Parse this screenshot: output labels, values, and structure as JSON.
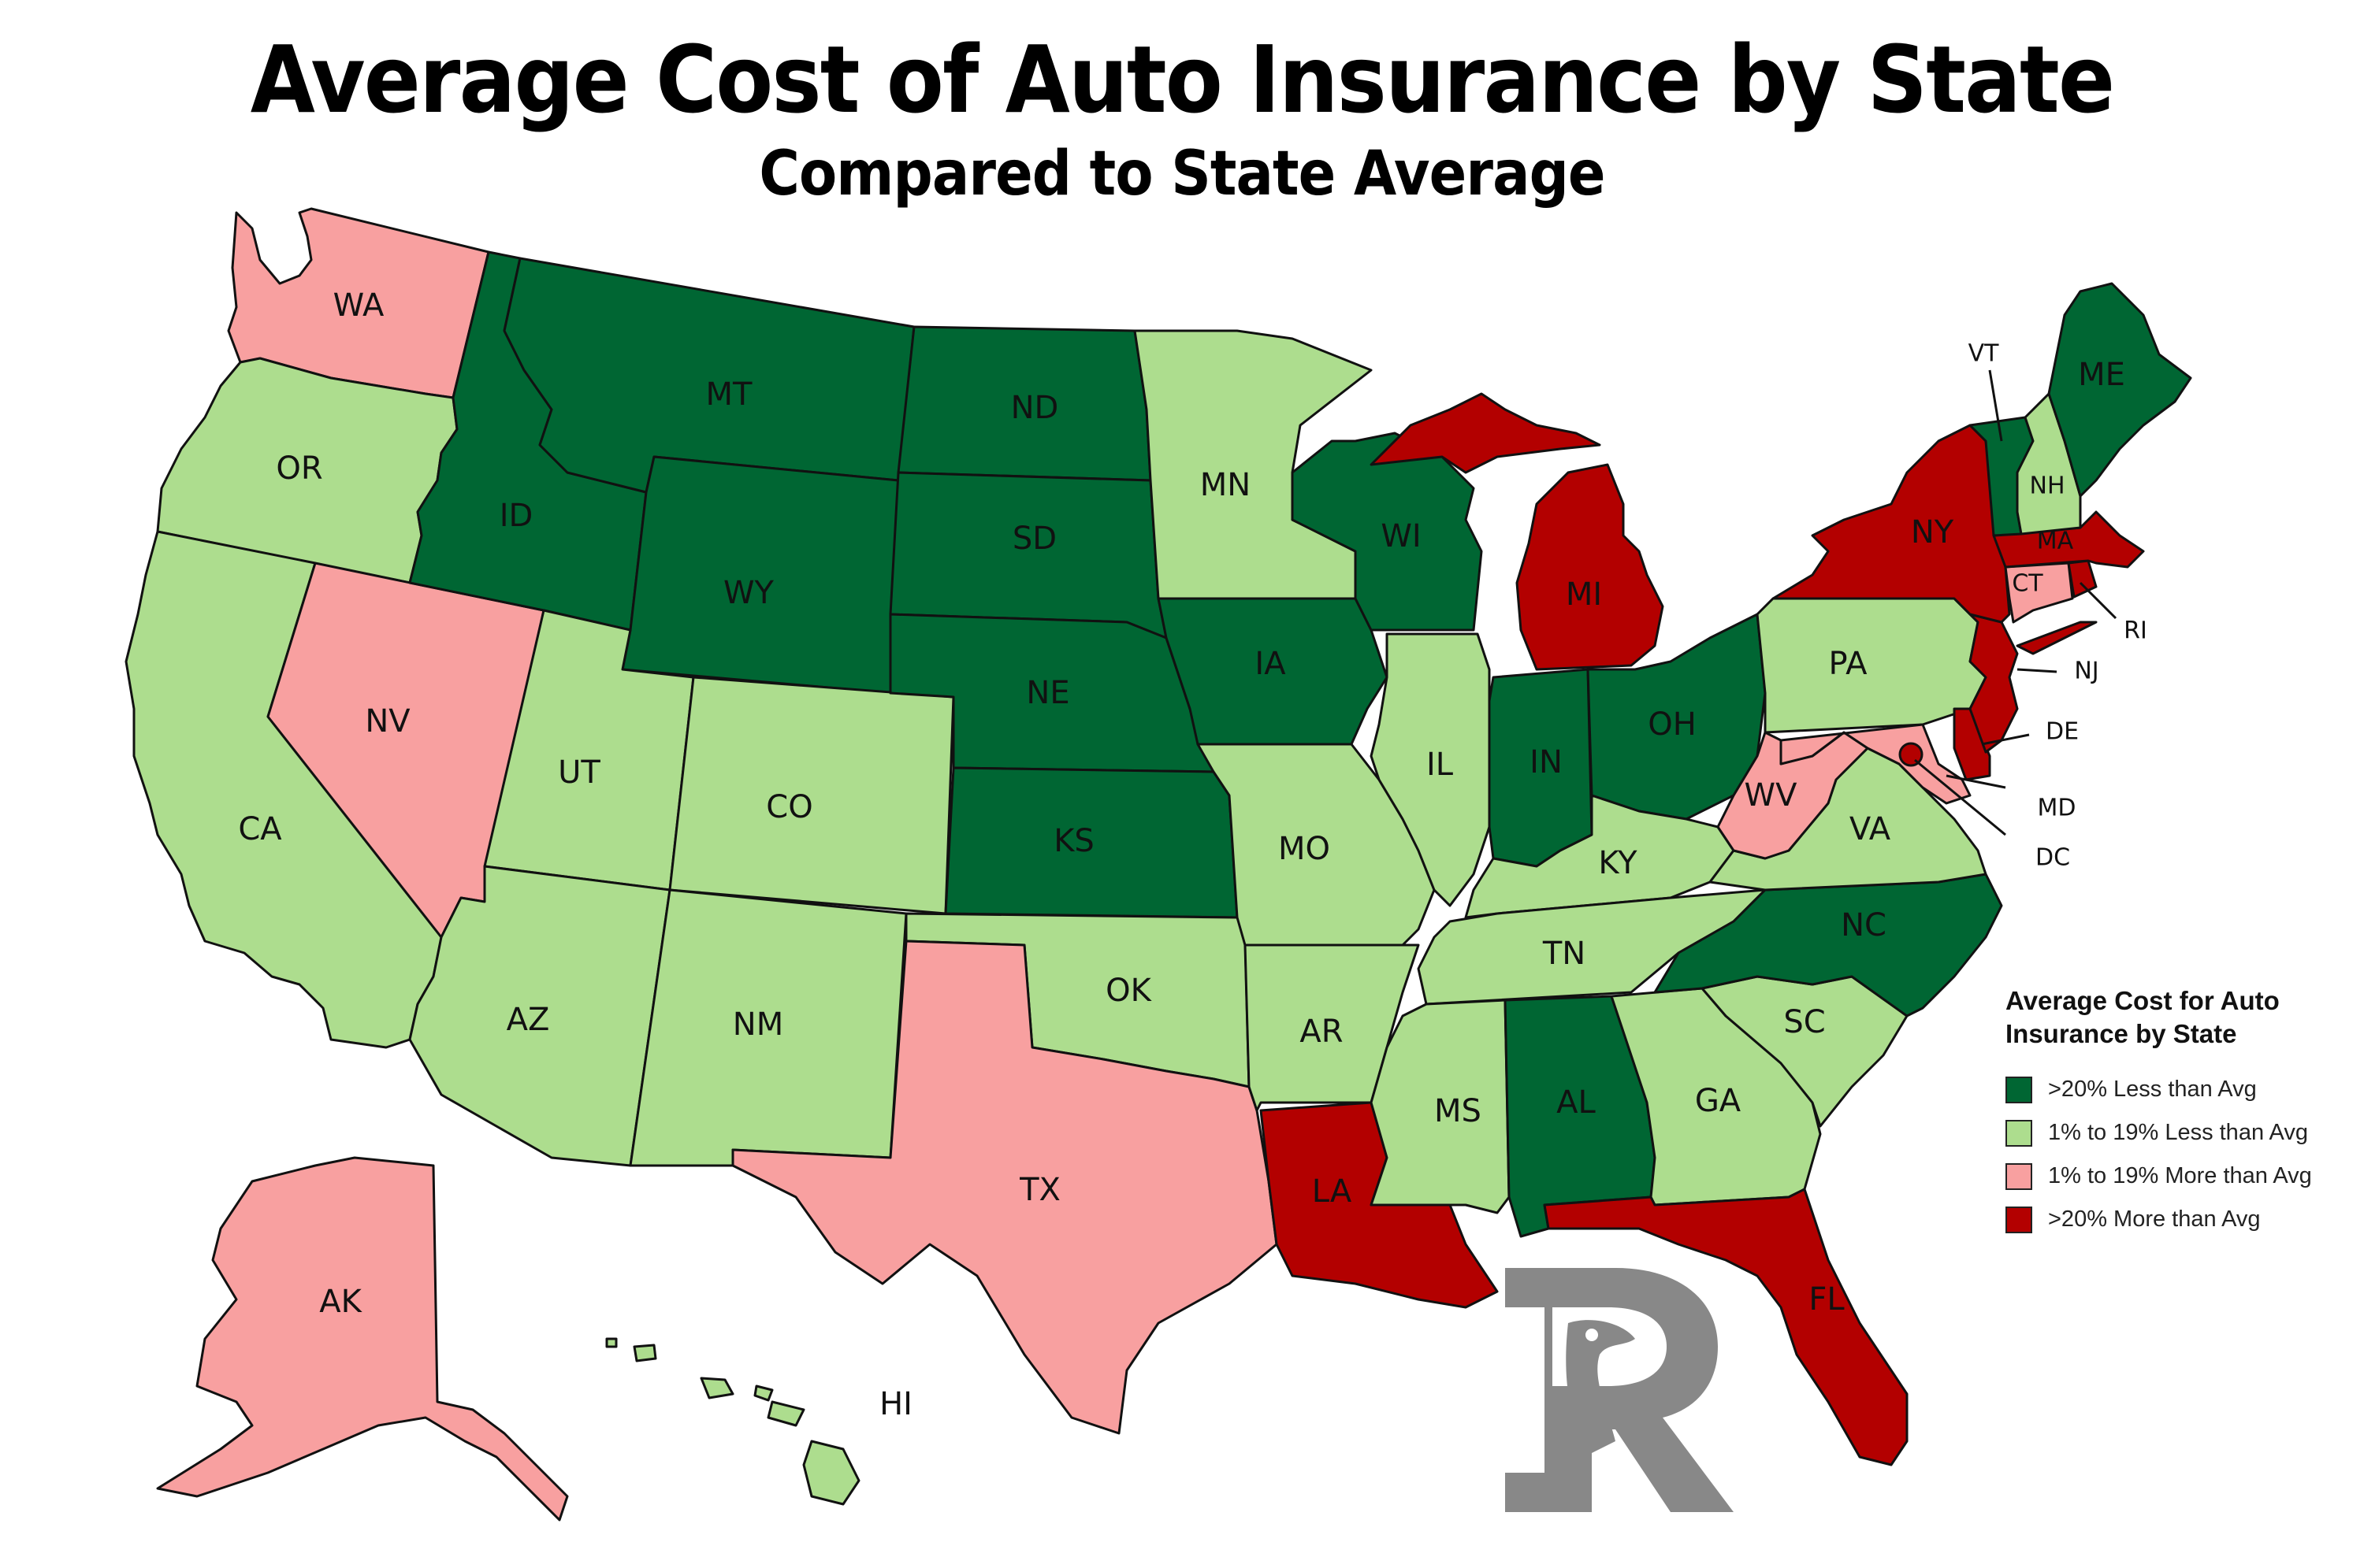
{
  "title": "Average Cost of Auto Insurance by State",
  "subtitle": "Compared to State Average",
  "legend": {
    "title_line1": "Average Cost for Auto",
    "title_line2": "Insurance by State",
    "items": [
      {
        "key": "much_less",
        "label": ">20% Less than Avg",
        "color": "#006633"
      },
      {
        "key": "less",
        "label": "1% to 19% Less than Avg",
        "color": "#addd8e"
      },
      {
        "key": "more",
        "label": "1% to 19% More than Avg",
        "color": "#f8a0a0"
      },
      {
        "key": "much_more",
        "label": ">20% More than Avg",
        "color": "#b30000"
      }
    ]
  },
  "states": {
    "WA": {
      "label": "WA",
      "category": "more"
    },
    "OR": {
      "label": "OR",
      "category": "less"
    },
    "CA": {
      "label": "CA",
      "category": "less"
    },
    "NV": {
      "label": "NV",
      "category": "more"
    },
    "ID": {
      "label": "ID",
      "category": "much_less"
    },
    "MT": {
      "label": "MT",
      "category": "much_less"
    },
    "WY": {
      "label": "WY",
      "category": "much_less"
    },
    "UT": {
      "label": "UT",
      "category": "less"
    },
    "CO": {
      "label": "CO",
      "category": "less"
    },
    "AZ": {
      "label": "AZ",
      "category": "less"
    },
    "NM": {
      "label": "NM",
      "category": "less"
    },
    "ND": {
      "label": "ND",
      "category": "much_less"
    },
    "SD": {
      "label": "SD",
      "category": "much_less"
    },
    "NE": {
      "label": "NE",
      "category": "much_less"
    },
    "KS": {
      "label": "KS",
      "category": "much_less"
    },
    "OK": {
      "label": "OK",
      "category": "less"
    },
    "TX": {
      "label": "TX",
      "category": "more"
    },
    "MN": {
      "label": "MN",
      "category": "less"
    },
    "IA": {
      "label": "IA",
      "category": "much_less"
    },
    "MO": {
      "label": "MO",
      "category": "less"
    },
    "AR": {
      "label": "AR",
      "category": "less"
    },
    "LA": {
      "label": "LA",
      "category": "much_more"
    },
    "WI": {
      "label": "WI",
      "category": "much_less"
    },
    "IL": {
      "label": "IL",
      "category": "less"
    },
    "MI": {
      "label": "MI",
      "category": "much_more"
    },
    "IN": {
      "label": "IN",
      "category": "much_less"
    },
    "OH": {
      "label": "OH",
      "category": "much_less"
    },
    "KY": {
      "label": "KY",
      "category": "less"
    },
    "TN": {
      "label": "TN",
      "category": "less"
    },
    "MS": {
      "label": "MS",
      "category": "less"
    },
    "AL": {
      "label": "AL",
      "category": "much_less"
    },
    "GA": {
      "label": "GA",
      "category": "less"
    },
    "FL": {
      "label": "FL",
      "category": "much_more"
    },
    "SC": {
      "label": "SC",
      "category": "less"
    },
    "NC": {
      "label": "NC",
      "category": "much_less"
    },
    "VA": {
      "label": "VA",
      "category": "less"
    },
    "WV": {
      "label": "WV",
      "category": "more"
    },
    "PA": {
      "label": "PA",
      "category": "less"
    },
    "NY": {
      "label": "NY",
      "category": "much_more"
    },
    "NJ": {
      "label": "NJ",
      "category": "much_more"
    },
    "DE": {
      "label": "DE",
      "category": "much_more"
    },
    "MD": {
      "label": "MD",
      "category": "more"
    },
    "DC": {
      "label": "DC",
      "category": "much_more"
    },
    "CT": {
      "label": "CT",
      "category": "more"
    },
    "RI": {
      "label": "RI",
      "category": "much_more"
    },
    "MA": {
      "label": "MA",
      "category": "much_more"
    },
    "VT": {
      "label": "VT",
      "category": "much_less"
    },
    "NH": {
      "label": "NH",
      "category": "less"
    },
    "ME": {
      "label": "ME",
      "category": "much_less"
    },
    "AK": {
      "label": "AK",
      "category": "more"
    },
    "HI": {
      "label": "HI",
      "category": "less"
    }
  }
}
